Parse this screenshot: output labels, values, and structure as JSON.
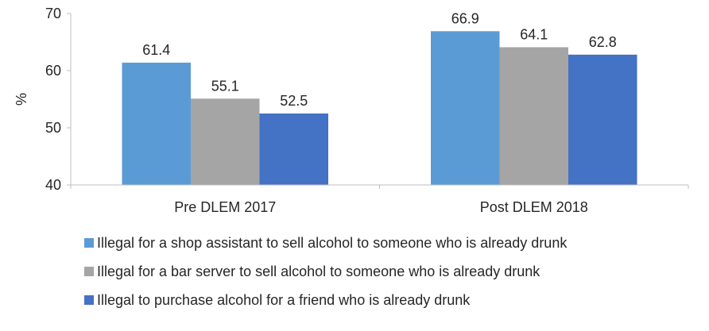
{
  "chart_data": {
    "type": "bar",
    "categories": [
      "Pre DLEM 2017",
      "Post DLEM 2018"
    ],
    "series": [
      {
        "name": "Illegal for a shop assistant to sell alcohol to someone who is already drunk",
        "values": [
          61.4,
          66.9
        ],
        "color": "#5b9bd5"
      },
      {
        "name": "Illegal for a bar server to sell alcohol to someone who is already drunk",
        "values": [
          55.1,
          64.1
        ],
        "color": "#a5a5a5"
      },
      {
        "name": "Illegal to purchase alcohol for a friend who is already drunk",
        "values": [
          52.5,
          62.8
        ],
        "color": "#4472c4"
      }
    ],
    "ylabel": "%",
    "ylim": [
      40,
      70
    ],
    "yticks": [
      40,
      50,
      60,
      70
    ],
    "grid": false,
    "legend_position": "bottom"
  }
}
